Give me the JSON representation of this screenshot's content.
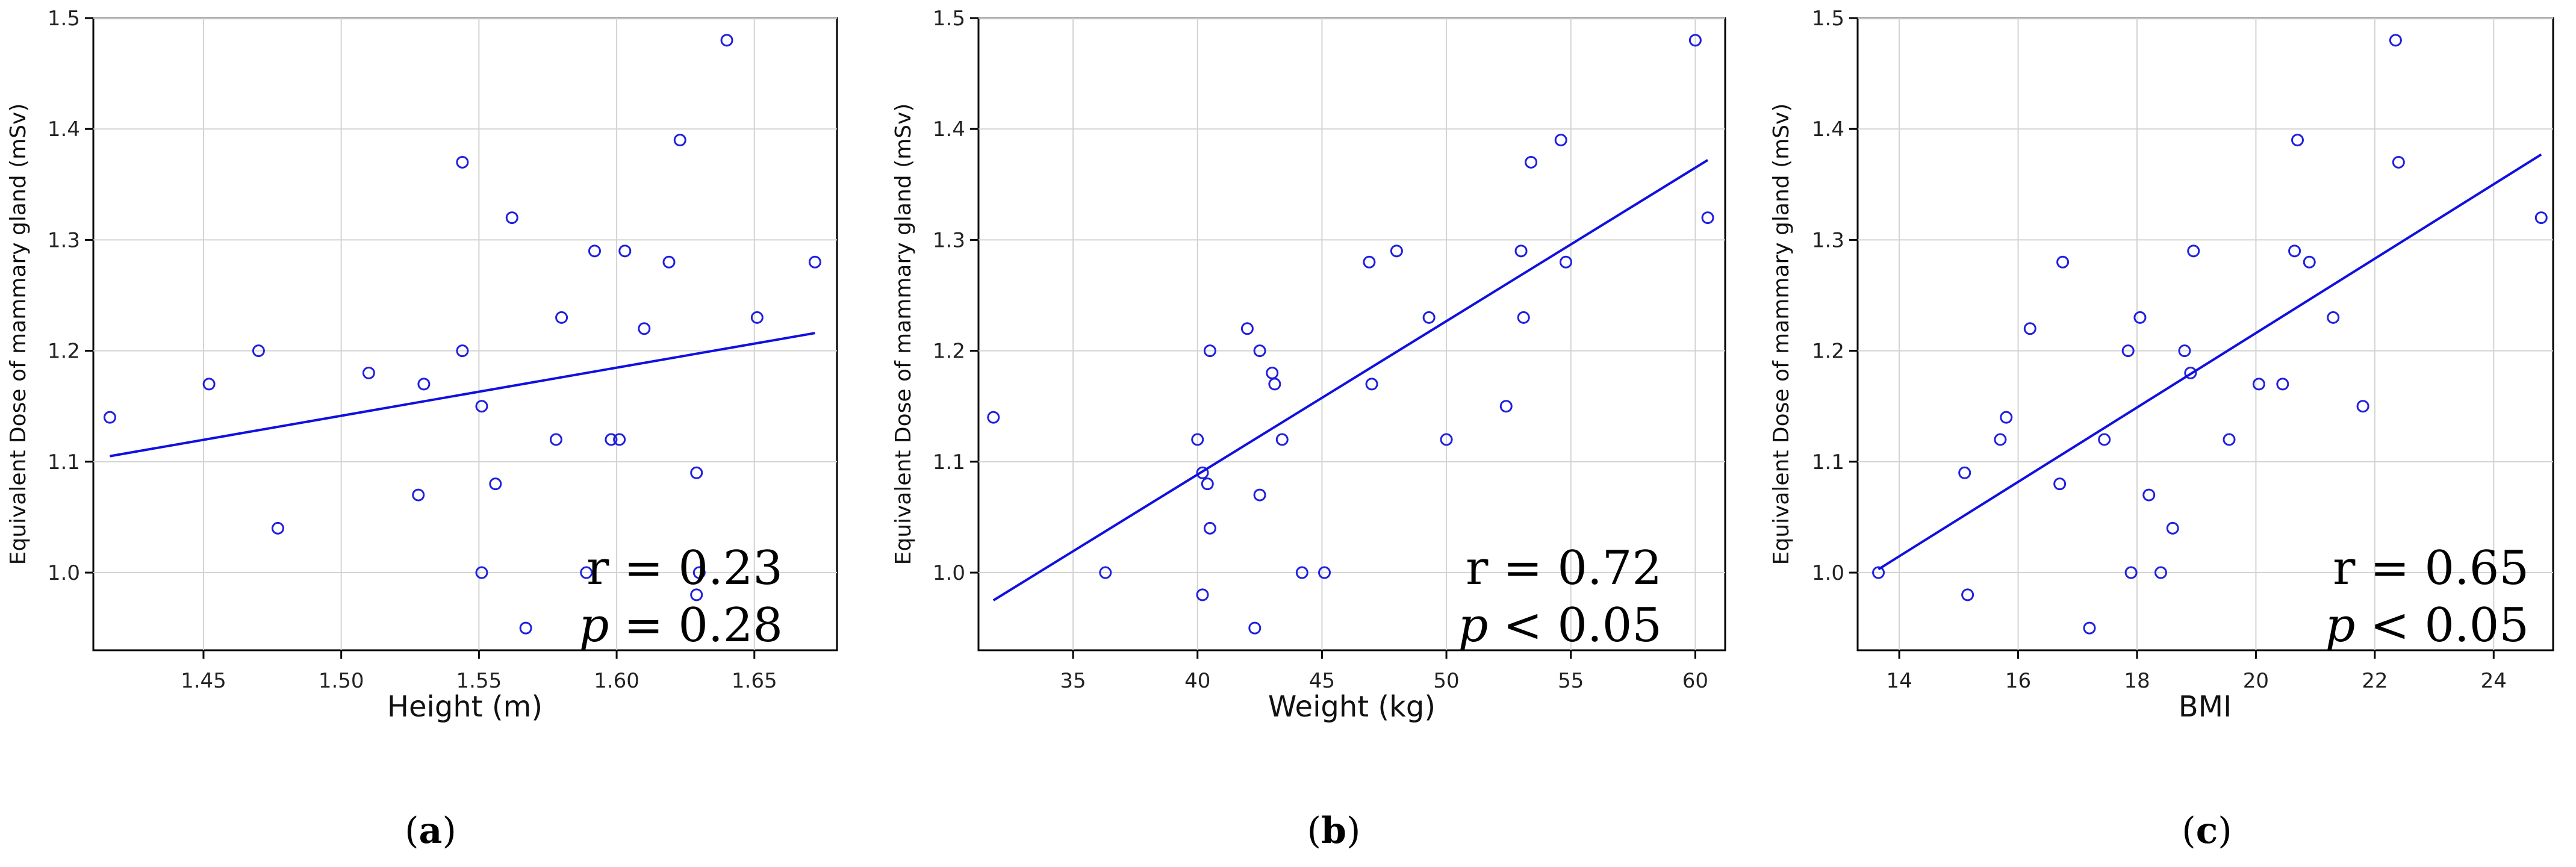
{
  "chart_data": [
    {
      "type": "scatter",
      "panel_label": "a",
      "xlabel": "Height (m)",
      "ylabel": "Equivalent  Dose of mammary gland (mSv)",
      "xlim": [
        1.41,
        1.68
      ],
      "ylim": [
        0.93,
        1.5
      ],
      "xticks": [
        1.45,
        1.5,
        1.55,
        1.6,
        1.65
      ],
      "xtick_labels": [
        "1.45",
        "1.50",
        "1.55",
        "1.60",
        "1.65"
      ],
      "yticks": [
        1.0,
        1.1,
        1.2,
        1.3,
        1.4,
        1.5
      ],
      "ytick_labels": [
        "1.0",
        "1.1",
        "1.2",
        "1.3",
        "1.4",
        "1.5"
      ],
      "grid": true,
      "point_color": "#1f1fe0",
      "fit_color": "#1010e0",
      "points": [
        [
          1.416,
          1.14
        ],
        [
          1.452,
          1.17
        ],
        [
          1.47,
          1.2
        ],
        [
          1.477,
          1.04
        ],
        [
          1.51,
          1.18
        ],
        [
          1.528,
          1.07
        ],
        [
          1.53,
          1.17
        ],
        [
          1.544,
          1.37
        ],
        [
          1.544,
          1.2
        ],
        [
          1.551,
          1.15
        ],
        [
          1.551,
          1.0
        ],
        [
          1.556,
          1.08
        ],
        [
          1.562,
          1.32
        ],
        [
          1.567,
          0.95
        ],
        [
          1.578,
          1.12
        ],
        [
          1.58,
          1.23
        ],
        [
          1.589,
          1.0
        ],
        [
          1.592,
          1.29
        ],
        [
          1.598,
          1.12
        ],
        [
          1.601,
          1.12
        ],
        [
          1.603,
          1.29
        ],
        [
          1.61,
          1.22
        ],
        [
          1.619,
          1.28
        ],
        [
          1.623,
          1.39
        ],
        [
          1.629,
          1.09
        ],
        [
          1.63,
          1.0
        ],
        [
          1.629,
          0.98
        ],
        [
          1.64,
          1.48
        ],
        [
          1.651,
          1.23
        ],
        [
          1.672,
          1.28
        ]
      ],
      "fit": [
        [
          1.416,
          1.105
        ],
        [
          1.672,
          1.216
        ]
      ],
      "r_label": "r = 0.23",
      "p_symbol": "p",
      "p_text": " = 0.28"
    },
    {
      "type": "scatter",
      "panel_label": "b",
      "xlabel": "Weight (kg)",
      "ylabel": "Equivalent  Dose of mammary gland (mSv)",
      "xlim": [
        31.2,
        61.2
      ],
      "ylim": [
        0.93,
        1.5
      ],
      "xticks": [
        35,
        40,
        45,
        50,
        55,
        60
      ],
      "xtick_labels": [
        "35",
        "40",
        "45",
        "50",
        "55",
        "60"
      ],
      "yticks": [
        1.0,
        1.1,
        1.2,
        1.3,
        1.4,
        1.5
      ],
      "ytick_labels": [
        "1.0",
        "1.1",
        "1.2",
        "1.3",
        "1.4",
        "1.5"
      ],
      "grid": true,
      "point_color": "#1f1fe0",
      "fit_color": "#1010e0",
      "points": [
        [
          31.8,
          1.14
        ],
        [
          36.3,
          1.0
        ],
        [
          40.0,
          1.12
        ],
        [
          40.2,
          1.09
        ],
        [
          40.2,
          0.98
        ],
        [
          40.4,
          1.08
        ],
        [
          40.5,
          1.2
        ],
        [
          40.5,
          1.04
        ],
        [
          42.0,
          1.22
        ],
        [
          42.3,
          0.95
        ],
        [
          42.5,
          1.2
        ],
        [
          42.5,
          1.07
        ],
        [
          43.0,
          1.18
        ],
        [
          43.1,
          1.17
        ],
        [
          43.4,
          1.12
        ],
        [
          44.2,
          1.0
        ],
        [
          45.1,
          1.0
        ],
        [
          46.9,
          1.28
        ],
        [
          47.0,
          1.17
        ],
        [
          48.0,
          1.29
        ],
        [
          49.3,
          1.23
        ],
        [
          50.0,
          1.12
        ],
        [
          52.4,
          1.15
        ],
        [
          53.0,
          1.29
        ],
        [
          53.1,
          1.23
        ],
        [
          53.4,
          1.37
        ],
        [
          54.6,
          1.39
        ],
        [
          54.8,
          1.28
        ],
        [
          60.0,
          1.48
        ],
        [
          60.5,
          1.32
        ]
      ],
      "fit": [
        [
          31.8,
          0.975
        ],
        [
          60.5,
          1.372
        ]
      ],
      "r_label": "r = 0.72",
      "p_symbol": "p",
      "p_text": " < 0.05"
    },
    {
      "type": "scatter",
      "panel_label": "c",
      "xlabel": "BMI",
      "ylabel": "Equivalent  Dose of mammary gland (mSv)",
      "xlim": [
        13.3,
        25.0
      ],
      "ylim": [
        0.93,
        1.5
      ],
      "xticks": [
        14,
        16,
        18,
        20,
        22,
        24
      ],
      "xtick_labels": [
        "14",
        "16",
        "18",
        "20",
        "22",
        "24"
      ],
      "yticks": [
        1.0,
        1.1,
        1.2,
        1.3,
        1.4,
        1.5
      ],
      "ytick_labels": [
        "1.0",
        "1.1",
        "1.2",
        "1.3",
        "1.4",
        "1.5"
      ],
      "grid": true,
      "point_color": "#1f1fe0",
      "fit_color": "#1010e0",
      "points": [
        [
          13.65,
          1.0
        ],
        [
          15.1,
          1.09
        ],
        [
          15.15,
          0.98
        ],
        [
          15.7,
          1.12
        ],
        [
          15.8,
          1.14
        ],
        [
          16.2,
          1.22
        ],
        [
          16.7,
          1.08
        ],
        [
          16.75,
          1.28
        ],
        [
          17.2,
          0.95
        ],
        [
          17.45,
          1.12
        ],
        [
          17.85,
          1.2
        ],
        [
          17.9,
          1.0
        ],
        [
          18.05,
          1.23
        ],
        [
          18.2,
          1.07
        ],
        [
          18.4,
          1.0
        ],
        [
          18.6,
          1.04
        ],
        [
          18.8,
          1.2
        ],
        [
          18.9,
          1.18
        ],
        [
          18.95,
          1.29
        ],
        [
          19.55,
          1.12
        ],
        [
          20.05,
          1.17
        ],
        [
          20.45,
          1.17
        ],
        [
          20.65,
          1.29
        ],
        [
          20.7,
          1.39
        ],
        [
          20.9,
          1.28
        ],
        [
          21.3,
          1.23
        ],
        [
          21.8,
          1.15
        ],
        [
          22.35,
          1.48
        ],
        [
          22.4,
          1.37
        ],
        [
          24.8,
          1.32
        ]
      ],
      "fit": [
        [
          13.65,
          1.003
        ],
        [
          24.8,
          1.377
        ]
      ],
      "r_label": "r = 0.65",
      "p_symbol": "p",
      "p_text": " < 0.05"
    }
  ]
}
